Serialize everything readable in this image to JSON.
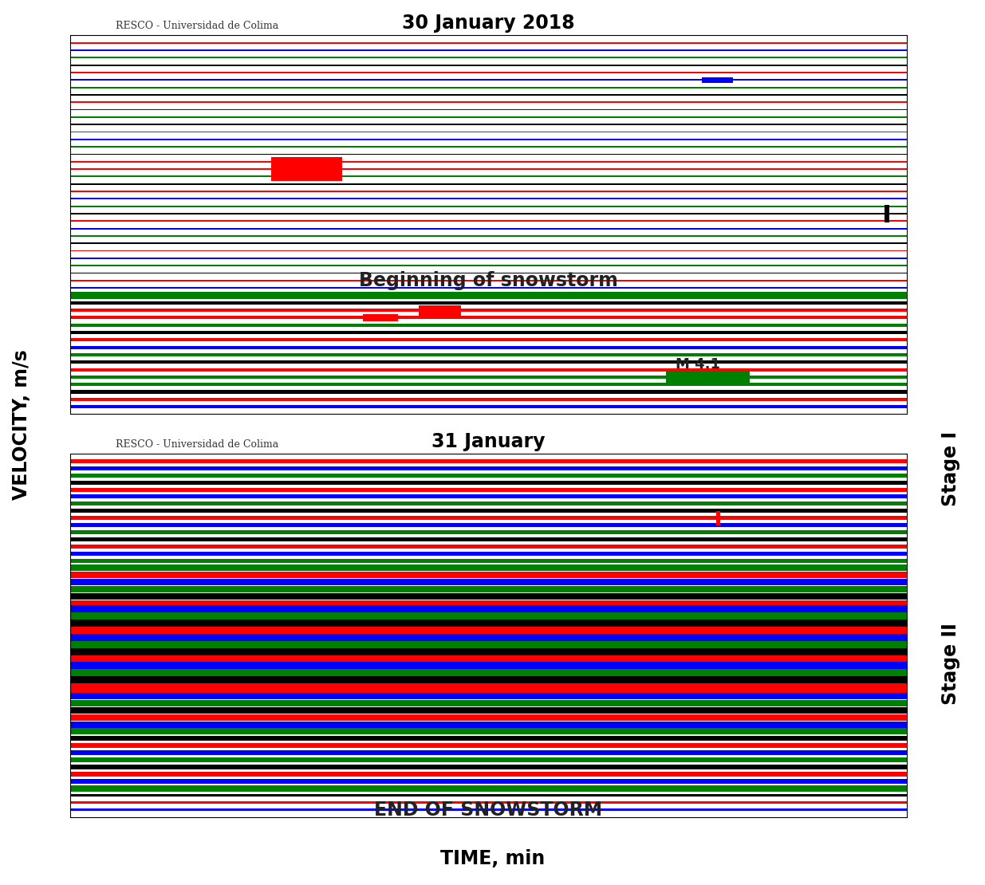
{
  "chart_data": [
    {
      "type": "helicorder",
      "title": "30 January 2018",
      "header": "RESCO - Universidad de Colima",
      "xlim": [
        0,
        60
      ],
      "ylim": [
        50,
        -1
      ],
      "tick_labels": false,
      "colors": [
        "red",
        "blue",
        "green",
        "black",
        "red",
        "blue",
        "green",
        "black",
        "red",
        "blue",
        "green",
        "black",
        "red",
        "blue",
        "green",
        "black",
        "red",
        "red",
        "green",
        "black",
        "red",
        "blue",
        "green",
        "black",
        "red",
        "blue",
        "green",
        "black",
        "red",
        "blue",
        "green",
        "black",
        "red",
        "blue",
        "green",
        "black",
        "red",
        "red",
        "green",
        "black",
        "red",
        "blue",
        "green",
        "black",
        "red",
        "green",
        "green",
        "black",
        "red",
        "blue"
      ],
      "amplitudes": [
        0.1,
        0.1,
        0.1,
        0.1,
        0.1,
        0.1,
        0.1,
        0.1,
        0.1,
        0.1,
        0.1,
        0.1,
        0.1,
        0.1,
        0.1,
        0.1,
        0.1,
        0.1,
        0.1,
        0.1,
        0.1,
        0.1,
        0.1,
        0.1,
        0.1,
        0.1,
        0.1,
        0.1,
        0.1,
        0.1,
        0.1,
        0.1,
        0.1,
        0.1,
        0.45,
        0.22,
        0.22,
        0.22,
        0.22,
        0.22,
        0.22,
        0.22,
        0.22,
        0.22,
        0.22,
        0.22,
        0.22,
        0.22,
        0.22,
        0.22
      ],
      "events": [
        {
          "row": 5,
          "start": 45.3,
          "end": 47.5,
          "amplitude": 0.4
        },
        {
          "row": 17,
          "start": 14.4,
          "end": 19.5,
          "amplitude": 1.6
        },
        {
          "row": 23,
          "start": 58.4,
          "end": 58.7,
          "amplitude": 1.2
        },
        {
          "row": 36,
          "start": 25,
          "end": 28,
          "amplitude": 0.7
        },
        {
          "row": 37,
          "start": 21,
          "end": 23.5,
          "amplitude": 0.5
        },
        {
          "row": 45,
          "start": 42.7,
          "end": 48.7,
          "amplitude": 0.8
        }
      ],
      "annotations": [
        {
          "text": "Beginning of snowstorm",
          "row": 32,
          "x": 30
        },
        {
          "text": "M 4.1",
          "row": 43.3,
          "x": 45
        }
      ]
    },
    {
      "type": "helicorder",
      "title": "31 January",
      "header": "RESCO - Universidad de Colima",
      "xlim": [
        0,
        60
      ],
      "ylim": [
        50,
        -1
      ],
      "tick_labels": false,
      "colors": [
        "red",
        "blue",
        "green",
        "black",
        "red",
        "blue",
        "green",
        "black",
        "red",
        "blue",
        "green",
        "black",
        "red",
        "blue",
        "green",
        "green",
        "red",
        "blue",
        "green",
        "black",
        "red",
        "blue",
        "green",
        "black",
        "red",
        "blue",
        "green",
        "black",
        "red",
        "blue",
        "green",
        "black",
        "red",
        "blue",
        "green",
        "black",
        "red",
        "blue",
        "green",
        "black",
        "red",
        "blue",
        "green",
        "black",
        "red",
        "blue",
        "green",
        "black",
        "red",
        "blue"
      ],
      "amplitudes": [
        0.28,
        0.28,
        0.28,
        0.28,
        0.28,
        0.28,
        0.28,
        0.28,
        0.28,
        0.28,
        0.28,
        0.28,
        0.28,
        0.28,
        0.28,
        0.45,
        0.45,
        0.45,
        0.45,
        0.45,
        0.45,
        0.75,
        0.75,
        0.75,
        0.75,
        0.75,
        0.75,
        0.75,
        0.75,
        0.75,
        0.75,
        0.75,
        0.75,
        0.45,
        0.45,
        0.45,
        0.45,
        0.45,
        0.45,
        0.35,
        0.35,
        0.35,
        0.35,
        0.35,
        0.35,
        0.35,
        0.45,
        0.18,
        0.18,
        0.18
      ],
      "events": [
        {
          "row": 8,
          "start": 46.3,
          "end": 46.6,
          "amplitude": 1.0
        }
      ],
      "annotations": [
        {
          "text": "END OF SNOWSTORM",
          "row": 49,
          "x": 30
        }
      ]
    }
  ],
  "axis_labels": {
    "x": "TIME, min",
    "y": "VELOCITY, m/s"
  },
  "stage_labels": [
    "Stage I",
    "Stage II"
  ]
}
